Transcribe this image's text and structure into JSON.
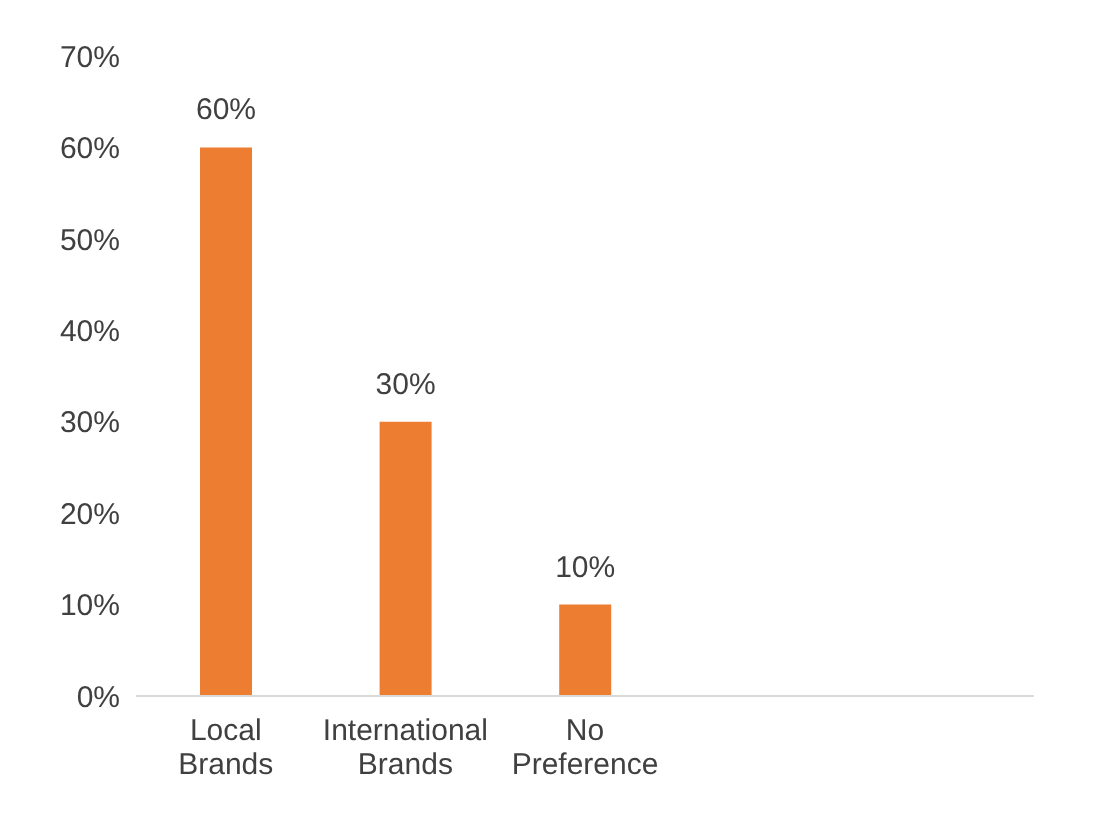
{
  "chart_data": {
    "type": "bar",
    "categories": [
      "Local Brands",
      "International Brands",
      "No Preference",
      null,
      null
    ],
    "values": [
      60,
      30,
      10,
      null,
      null
    ],
    "value_labels": [
      "60%",
      "30%",
      "10%",
      null,
      null
    ],
    "color": "#ed7d31",
    "ylim": [
      0,
      70
    ],
    "yticks": [
      {
        "value": 0,
        "label": "0%"
      },
      {
        "value": 10,
        "label": "10%"
      },
      {
        "value": 20,
        "label": "20%"
      },
      {
        "value": 30,
        "label": "30%"
      },
      {
        "value": 40,
        "label": "40%"
      },
      {
        "value": 50,
        "label": "50%"
      },
      {
        "value": 60,
        "label": "60%"
      },
      {
        "value": 70,
        "label": "70%"
      }
    ],
    "grid": false,
    "legend": false
  }
}
